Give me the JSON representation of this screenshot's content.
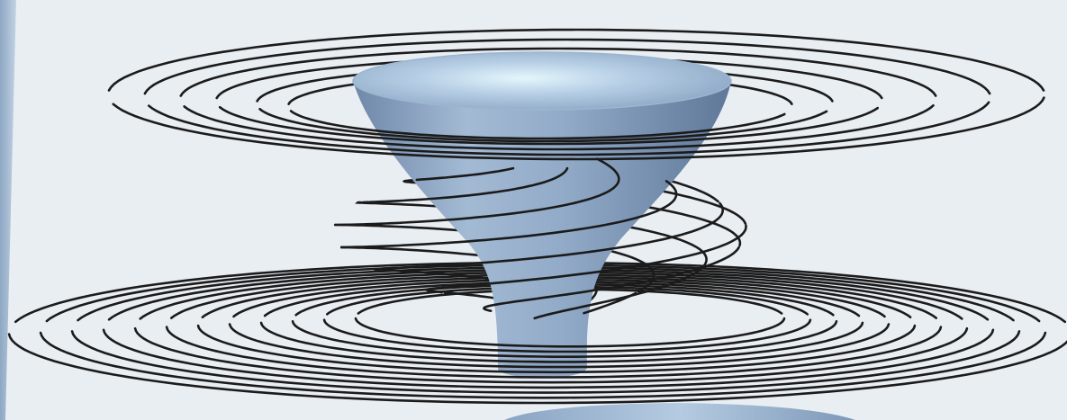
{
  "figure": {
    "background_color": "#e9eef3",
    "edge_color": "#a9bed6",
    "curve_color": "#1b1b1b",
    "surface_rim_color": "#b4cde3",
    "surface_body_color": "#8aa3c2",
    "surface_highlight_color": "#e4f6fc"
  }
}
